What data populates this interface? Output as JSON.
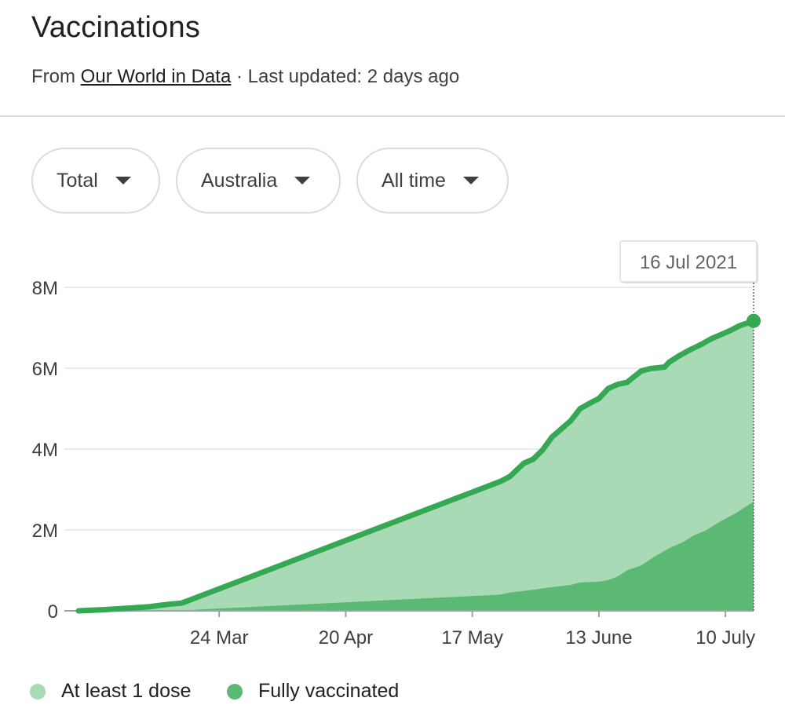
{
  "header": {
    "title": "Vaccinations",
    "source_prefix": "From ",
    "source_link": "Our World in Data",
    "updated": " · Last updated: 2 days ago"
  },
  "filters": [
    {
      "label": "Total"
    },
    {
      "label": "Australia"
    },
    {
      "label": "All time"
    }
  ],
  "tooltip": {
    "date": "16 Jul 2021"
  },
  "colors": {
    "line": "#34a853",
    "area_first_dose": "#a8dab5",
    "area_full": "#5bb974",
    "grid": "#e8eaed",
    "text": "#3c4043"
  },
  "chart_data": {
    "type": "area",
    "title": "",
    "xlabel": "",
    "ylabel": "",
    "ylim": [
      0,
      8000000
    ],
    "y_ticks": [
      {
        "value": 0,
        "label": "0"
      },
      {
        "value": 2000000,
        "label": "2M"
      },
      {
        "value": 4000000,
        "label": "4M"
      },
      {
        "value": 6000000,
        "label": "6M"
      },
      {
        "value": 8000000,
        "label": "8M"
      }
    ],
    "xlim": [
      "2021-02-22",
      "2021-07-16"
    ],
    "x_ticks": [
      {
        "date": "2021-03-24",
        "label": "24 Mar"
      },
      {
        "date": "2021-04-20",
        "label": "20 Apr"
      },
      {
        "date": "2021-05-17",
        "label": "17 May"
      },
      {
        "date": "2021-06-13",
        "label": "13 June"
      },
      {
        "date": "2021-07-10",
        "label": "10 July"
      }
    ],
    "grid": true,
    "legend_position": "bottom-left",
    "series": [
      {
        "name": "At least 1 dose",
        "x": [
          "2021-02-22",
          "2021-02-27",
          "2021-03-04",
          "2021-03-09",
          "2021-03-13",
          "2021-03-16",
          "2021-05-23",
          "2021-05-25",
          "2021-05-28",
          "2021-05-30",
          "2021-06-01",
          "2021-06-03",
          "2021-06-05",
          "2021-06-07",
          "2021-06-09",
          "2021-06-11",
          "2021-06-13",
          "2021-06-15",
          "2021-06-17",
          "2021-06-19",
          "2021-06-22",
          "2021-06-24",
          "2021-06-27",
          "2021-06-28",
          "2021-06-30",
          "2021-07-02",
          "2021-07-05",
          "2021-07-07",
          "2021-07-09",
          "2021-07-11",
          "2021-07-13",
          "2021-07-16"
        ],
        "values": [
          0,
          25000,
          60000,
          100000,
          160000,
          190000,
          3200000,
          3320000,
          3650000,
          3750000,
          3980000,
          4300000,
          4500000,
          4700000,
          5000000,
          5130000,
          5250000,
          5500000,
          5600000,
          5650000,
          5930000,
          5990000,
          6030000,
          6150000,
          6300000,
          6430000,
          6600000,
          6730000,
          6830000,
          6930000,
          7050000,
          7170000
        ]
      },
      {
        "name": "Fully vaccinated",
        "x": [
          "2021-02-22",
          "2021-03-16",
          "2021-05-23",
          "2021-05-25",
          "2021-05-30",
          "2021-06-02",
          "2021-06-07",
          "2021-06-09",
          "2021-06-13",
          "2021-06-15",
          "2021-06-17",
          "2021-06-19",
          "2021-06-22",
          "2021-06-25",
          "2021-06-28",
          "2021-07-01",
          "2021-07-03",
          "2021-07-06",
          "2021-07-08",
          "2021-07-10",
          "2021-07-12",
          "2021-07-16"
        ],
        "values": [
          0,
          10000,
          400000,
          450000,
          520000,
          570000,
          640000,
          700000,
          720000,
          760000,
          850000,
          1000000,
          1120000,
          1350000,
          1550000,
          1700000,
          1850000,
          2000000,
          2150000,
          2280000,
          2400000,
          2700000
        ]
      }
    ]
  }
}
